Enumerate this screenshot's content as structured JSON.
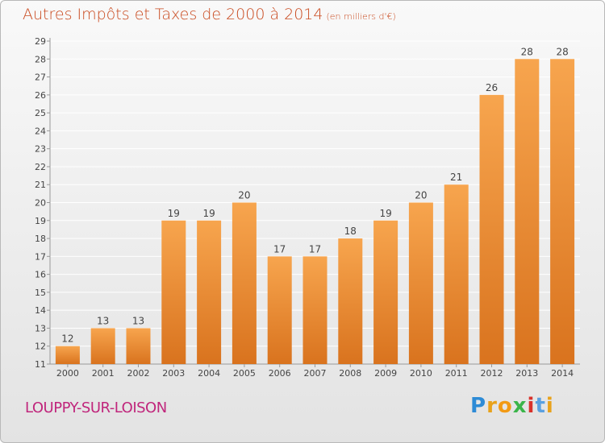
{
  "title": "Autres Impôts et Taxes de 2000 à 2014",
  "subtitle": "(en milliers d'€)",
  "commune": "LOUPPY-SUR-LOISON",
  "brand": {
    "letters": [
      "P",
      "r",
      "o",
      "x",
      "i",
      "t",
      "i"
    ],
    "colors": [
      "#2d8bd6",
      "#e8a21b",
      "#f29a14",
      "#3bb54a",
      "#d9322b",
      "#5aa0e0",
      "#e8a21b"
    ]
  },
  "colors": {
    "bar_top": "#f7a54e",
    "bar_bottom": "#d9731e",
    "text": "#444444",
    "grid": "#ffffff"
  },
  "chart_data": {
    "type": "bar",
    "categories": [
      "2000",
      "2001",
      "2002",
      "2003",
      "2004",
      "2005",
      "2006",
      "2007",
      "2008",
      "2009",
      "2010",
      "2011",
      "2012",
      "2013",
      "2014"
    ],
    "values": [
      12,
      13,
      13,
      19,
      19,
      20,
      17,
      17,
      18,
      19,
      20,
      21,
      26,
      28,
      28
    ],
    "title": "Autres Impôts et Taxes de 2000 à 2014",
    "ylim": [
      11,
      29
    ],
    "yticks": [
      11,
      12,
      13,
      14,
      15,
      16,
      17,
      18,
      19,
      20,
      21,
      22,
      23,
      24,
      25,
      26,
      27,
      28,
      29
    ],
    "grid": true,
    "data_labels": true
  }
}
